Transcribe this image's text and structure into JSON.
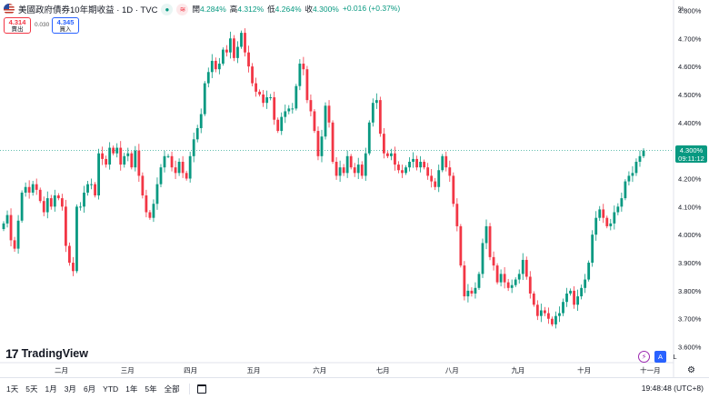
{
  "header": {
    "title": "美國政府債券10年期收益 · 1D · TVC",
    "open_label": "開",
    "open_value": "4.284%",
    "high_label": "高",
    "high_value": "4.312%",
    "low_label": "低",
    "low_value": "4.264%",
    "close_label": "收",
    "close_value": "4.300%",
    "change": "+0.016 (+0.37%)",
    "status_icon": "dot-icon",
    "wave_icon": "wave-icon"
  },
  "trade": {
    "sell_price": "4.314",
    "sell_label": "賣出",
    "spread": "0.030",
    "buy_price": "4.345",
    "buy_label": "買入"
  },
  "price_axis": {
    "unit": "%",
    "labels": [
      "4.800%",
      "4.700%",
      "4.600%",
      "4.500%",
      "4.400%",
      "4.300%",
      "4.200%",
      "4.100%",
      "4.000%",
      "3.900%",
      "3.800%",
      "3.700%",
      "3.600%"
    ]
  },
  "last_price": {
    "value": "4.300%",
    "countdown": "09:11:12"
  },
  "time_axis": {
    "labels": [
      "二月",
      "三月",
      "四月",
      "五月",
      "六月",
      "七月",
      "八月",
      "九月",
      "十月",
      "十一月"
    ]
  },
  "colors": {
    "up": "#089981",
    "down": "#f23645",
    "accent": "#2962ff"
  },
  "branding": {
    "logo_mark": "17",
    "logo_text": "TradingView"
  },
  "scale_buttons": {
    "auto": "A",
    "log": "L"
  },
  "toolbar": {
    "ranges": [
      "1天",
      "5天",
      "1月",
      "3月",
      "6月",
      "YTD",
      "1年",
      "5年",
      "全部"
    ],
    "time": "19:48:48 (UTC+8)"
  },
  "chart_data": {
    "type": "candlestick",
    "title": "美國政府債券10年期收益 · 1D · TVC",
    "ylim": [
      3.55,
      4.85
    ],
    "y_unit": "%",
    "x_tick_labels": [
      "二月",
      "三月",
      "四月",
      "五月",
      "六月",
      "七月",
      "八月",
      "九月",
      "十月",
      "十一月"
    ],
    "closes": [
      4.04,
      4.07,
      3.98,
      3.95,
      4.05,
      4.15,
      4.17,
      4.15,
      4.18,
      4.16,
      4.12,
      4.08,
      4.13,
      4.1,
      4.14,
      4.13,
      4.1,
      3.96,
      3.9,
      3.87,
      4.1,
      4.1,
      4.15,
      4.18,
      4.18,
      4.14,
      4.29,
      4.27,
      4.25,
      4.31,
      4.29,
      4.31,
      4.25,
      4.28,
      4.29,
      4.24,
      4.3,
      4.21,
      4.14,
      4.08,
      4.06,
      4.11,
      4.18,
      4.24,
      4.28,
      4.28,
      4.24,
      4.22,
      4.26,
      4.22,
      4.2,
      4.28,
      4.34,
      4.38,
      4.43,
      4.54,
      4.58,
      4.62,
      4.59,
      4.61,
      4.66,
      4.65,
      4.7,
      4.63,
      4.67,
      4.72,
      4.65,
      4.6,
      4.54,
      4.51,
      4.5,
      4.47,
      4.49,
      4.49,
      4.41,
      4.37,
      4.42,
      4.44,
      4.45,
      4.45,
      4.53,
      4.61,
      4.59,
      4.48,
      4.44,
      4.37,
      4.28,
      4.35,
      4.46,
      4.4,
      4.26,
      4.21,
      4.24,
      4.22,
      4.28,
      4.24,
      4.22,
      4.25,
      4.21,
      4.29,
      4.4,
      4.47,
      4.48,
      4.36,
      4.29,
      4.28,
      4.29,
      4.25,
      4.23,
      4.22,
      4.24,
      4.26,
      4.27,
      4.24,
      4.26,
      4.24,
      4.21,
      4.19,
      4.17,
      4.23,
      4.28,
      4.24,
      4.21,
      4.11,
      4.03,
      3.89,
      3.78,
      3.8,
      3.79,
      3.81,
      3.86,
      3.97,
      4.03,
      3.92,
      3.89,
      3.83,
      3.86,
      3.83,
      3.81,
      3.82,
      3.84,
      3.86,
      3.91,
      3.85,
      3.79,
      3.75,
      3.71,
      3.73,
      3.72,
      3.7,
      3.68,
      3.71,
      3.72,
      3.76,
      3.79,
      3.8,
      3.75,
      3.78,
      3.81,
      3.84,
      3.9,
      4.0,
      4.06,
      4.09,
      4.06,
      4.03,
      4.04,
      4.08,
      4.1,
      4.13,
      4.19,
      4.21,
      4.22,
      4.26,
      4.28,
      4.3
    ]
  }
}
